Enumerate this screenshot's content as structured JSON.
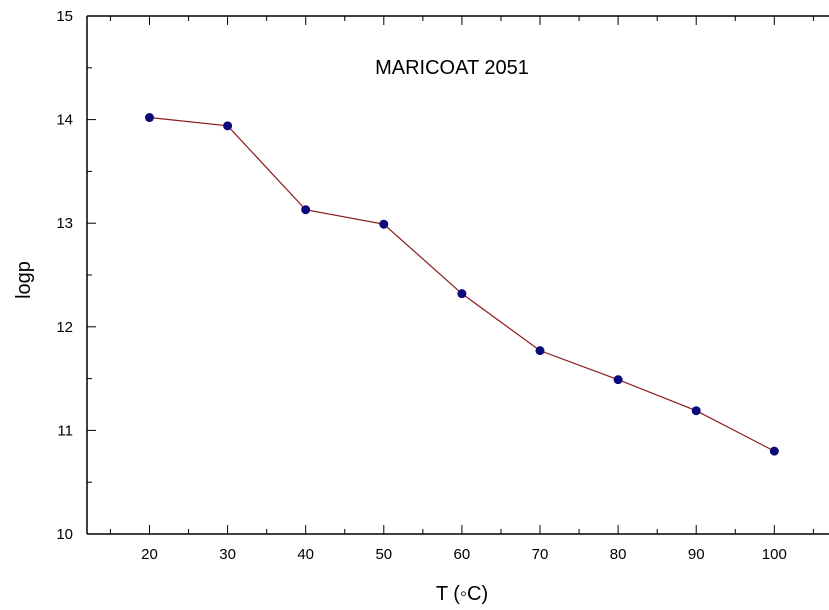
{
  "chart_data": {
    "type": "line",
    "title": "",
    "annotation": "MARICOAT 2051",
    "xlabel": "T (◦C)",
    "ylabel": "logp",
    "xlim": [
      12,
      107
    ],
    "ylim": [
      10,
      15
    ],
    "xticks": [
      "20",
      "30",
      "40",
      "50",
      "60",
      "70",
      "80",
      "90",
      "100"
    ],
    "yticks": [
      "10",
      "11",
      "12",
      "13",
      "14",
      "15"
    ],
    "grid": false,
    "series": [
      {
        "x": [
          20,
          30,
          40,
          50,
          60,
          70,
          80,
          90,
          100
        ],
        "values": [
          14.02,
          13.94,
          13.13,
          12.99,
          12.32,
          11.77,
          11.49,
          11.19,
          10.8
        ]
      }
    ],
    "colors": {
      "line": "#8b1a1a",
      "marker": "#0a0a7a",
      "axis": "#000000"
    }
  }
}
